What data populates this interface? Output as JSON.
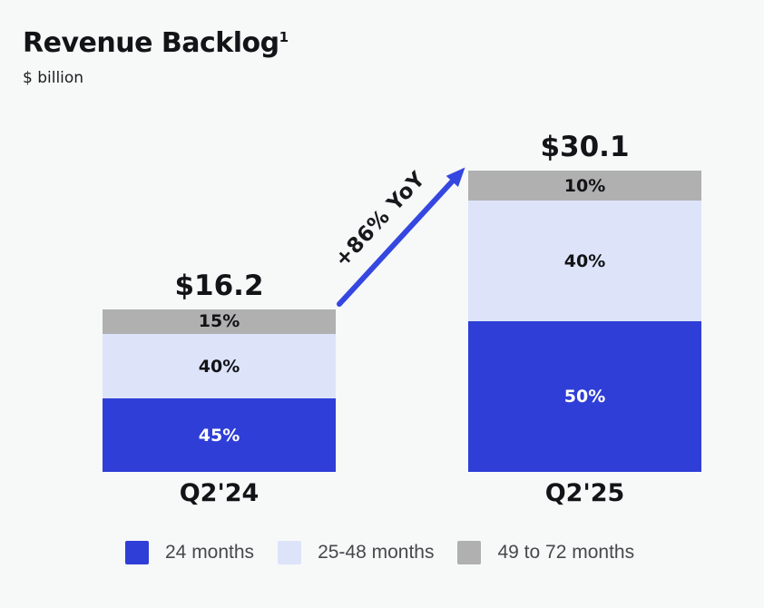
{
  "header": {
    "title": "Revenue Backlog",
    "footnote_marker": "1",
    "subtitle": "$ billion"
  },
  "annotation": {
    "label": "+86% YoY"
  },
  "bars": [
    {
      "category": "Q2'24",
      "total": "$16.2",
      "segments": [
        {
          "name": "49 to 72 months",
          "label": "15%",
          "pct": 15
        },
        {
          "name": "25-48 months",
          "label": "40%",
          "pct": 40
        },
        {
          "name": "24 months",
          "label": "45%",
          "pct": 45
        }
      ]
    },
    {
      "category": "Q2'25",
      "total": "$30.1",
      "segments": [
        {
          "name": "49 to 72 months",
          "label": "10%",
          "pct": 10
        },
        {
          "name": "25-48 months",
          "label": "40%",
          "pct": 40
        },
        {
          "name": "24 months",
          "label": "50%",
          "pct": 50
        }
      ]
    }
  ],
  "legend": {
    "items": [
      {
        "label": "24 months",
        "color": "#2F3ED6"
      },
      {
        "label": "25-48 months",
        "color": "#DDE4FA"
      },
      {
        "label": "49 to 72 months",
        "color": "#B0B0B0"
      }
    ]
  },
  "colors": {
    "background": "#F7F8F8",
    "segment_24_months": "#2F3ED6",
    "segment_25_48_months": "#DDE4FA",
    "segment_49_72_months": "#B0B0B0",
    "arrow": "#3547E0",
    "text_dark": "#131417",
    "legend_text": "#48484D"
  },
  "chart_data": {
    "type": "bar",
    "stacked": true,
    "title": "Revenue Backlog",
    "title_footnote_marker": "1",
    "units": "$ billion",
    "categories": [
      "Q2'24",
      "Q2'25"
    ],
    "bar_total_labels": [
      "$16.2",
      "$30.1"
    ],
    "bar_totals_billion": [
      16.2,
      30.1
    ],
    "series": [
      {
        "name": "24 months",
        "pct_of_total": [
          45,
          50
        ],
        "color": "#2F3ED6",
        "label_color": "#FFFFFF"
      },
      {
        "name": "25-48 months",
        "pct_of_total": [
          40,
          40
        ],
        "color": "#DDE4FA",
        "label_color": "#121316"
      },
      {
        "name": "49 to 72 months",
        "pct_of_total": [
          15,
          10
        ],
        "color": "#B0B0B0",
        "label_color": "#121316"
      }
    ],
    "segment_order_top_to_bottom": [
      "49 to 72 months",
      "25-48 months",
      "24 months"
    ],
    "annotations": [
      {
        "text": "+86% YoY",
        "type": "growth-arrow",
        "from_category": "Q2'24",
        "to_category": "Q2'25"
      }
    ],
    "legend_position": "bottom",
    "grid": false,
    "axes_hidden": true
  }
}
